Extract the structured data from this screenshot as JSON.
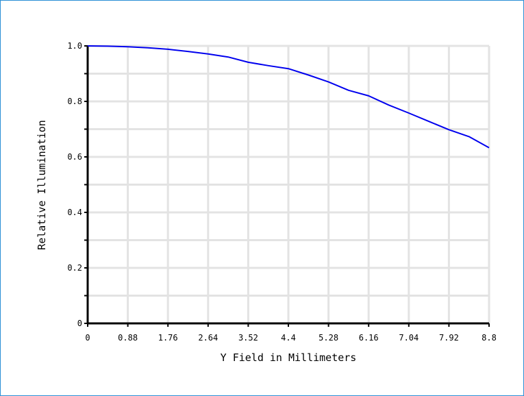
{
  "chart_data": {
    "type": "line",
    "xlabel": "Y Field in Millimeters",
    "ylabel": "Relative Illumination",
    "xlim": [
      0,
      8.8
    ],
    "ylim": [
      0,
      1.0
    ],
    "x_ticks": [
      "0",
      "0.88",
      "1.76",
      "2.64",
      "3.52",
      "4.4",
      "5.28",
      "6.16",
      "7.04",
      "7.92",
      "8.8"
    ],
    "y_ticks": [
      "0",
      "0.2",
      "0.4",
      "0.6",
      "0.8",
      "1.0"
    ],
    "grid": true,
    "series": [
      {
        "color": "#0000ee",
        "x": [
          0,
          0.44,
          0.88,
          1.32,
          1.76,
          2.2,
          2.64,
          3.08,
          3.52,
          3.96,
          4.4,
          4.84,
          5.28,
          5.72,
          6.16,
          6.6,
          7.04,
          7.48,
          7.92,
          8.36,
          8.8
        ],
        "y": [
          1.0,
          0.999,
          0.997,
          0.993,
          0.988,
          0.98,
          0.971,
          0.96,
          0.941,
          0.929,
          0.918,
          0.895,
          0.87,
          0.84,
          0.82,
          0.787,
          0.758,
          0.728,
          0.698,
          0.673,
          0.633
        ]
      }
    ]
  }
}
